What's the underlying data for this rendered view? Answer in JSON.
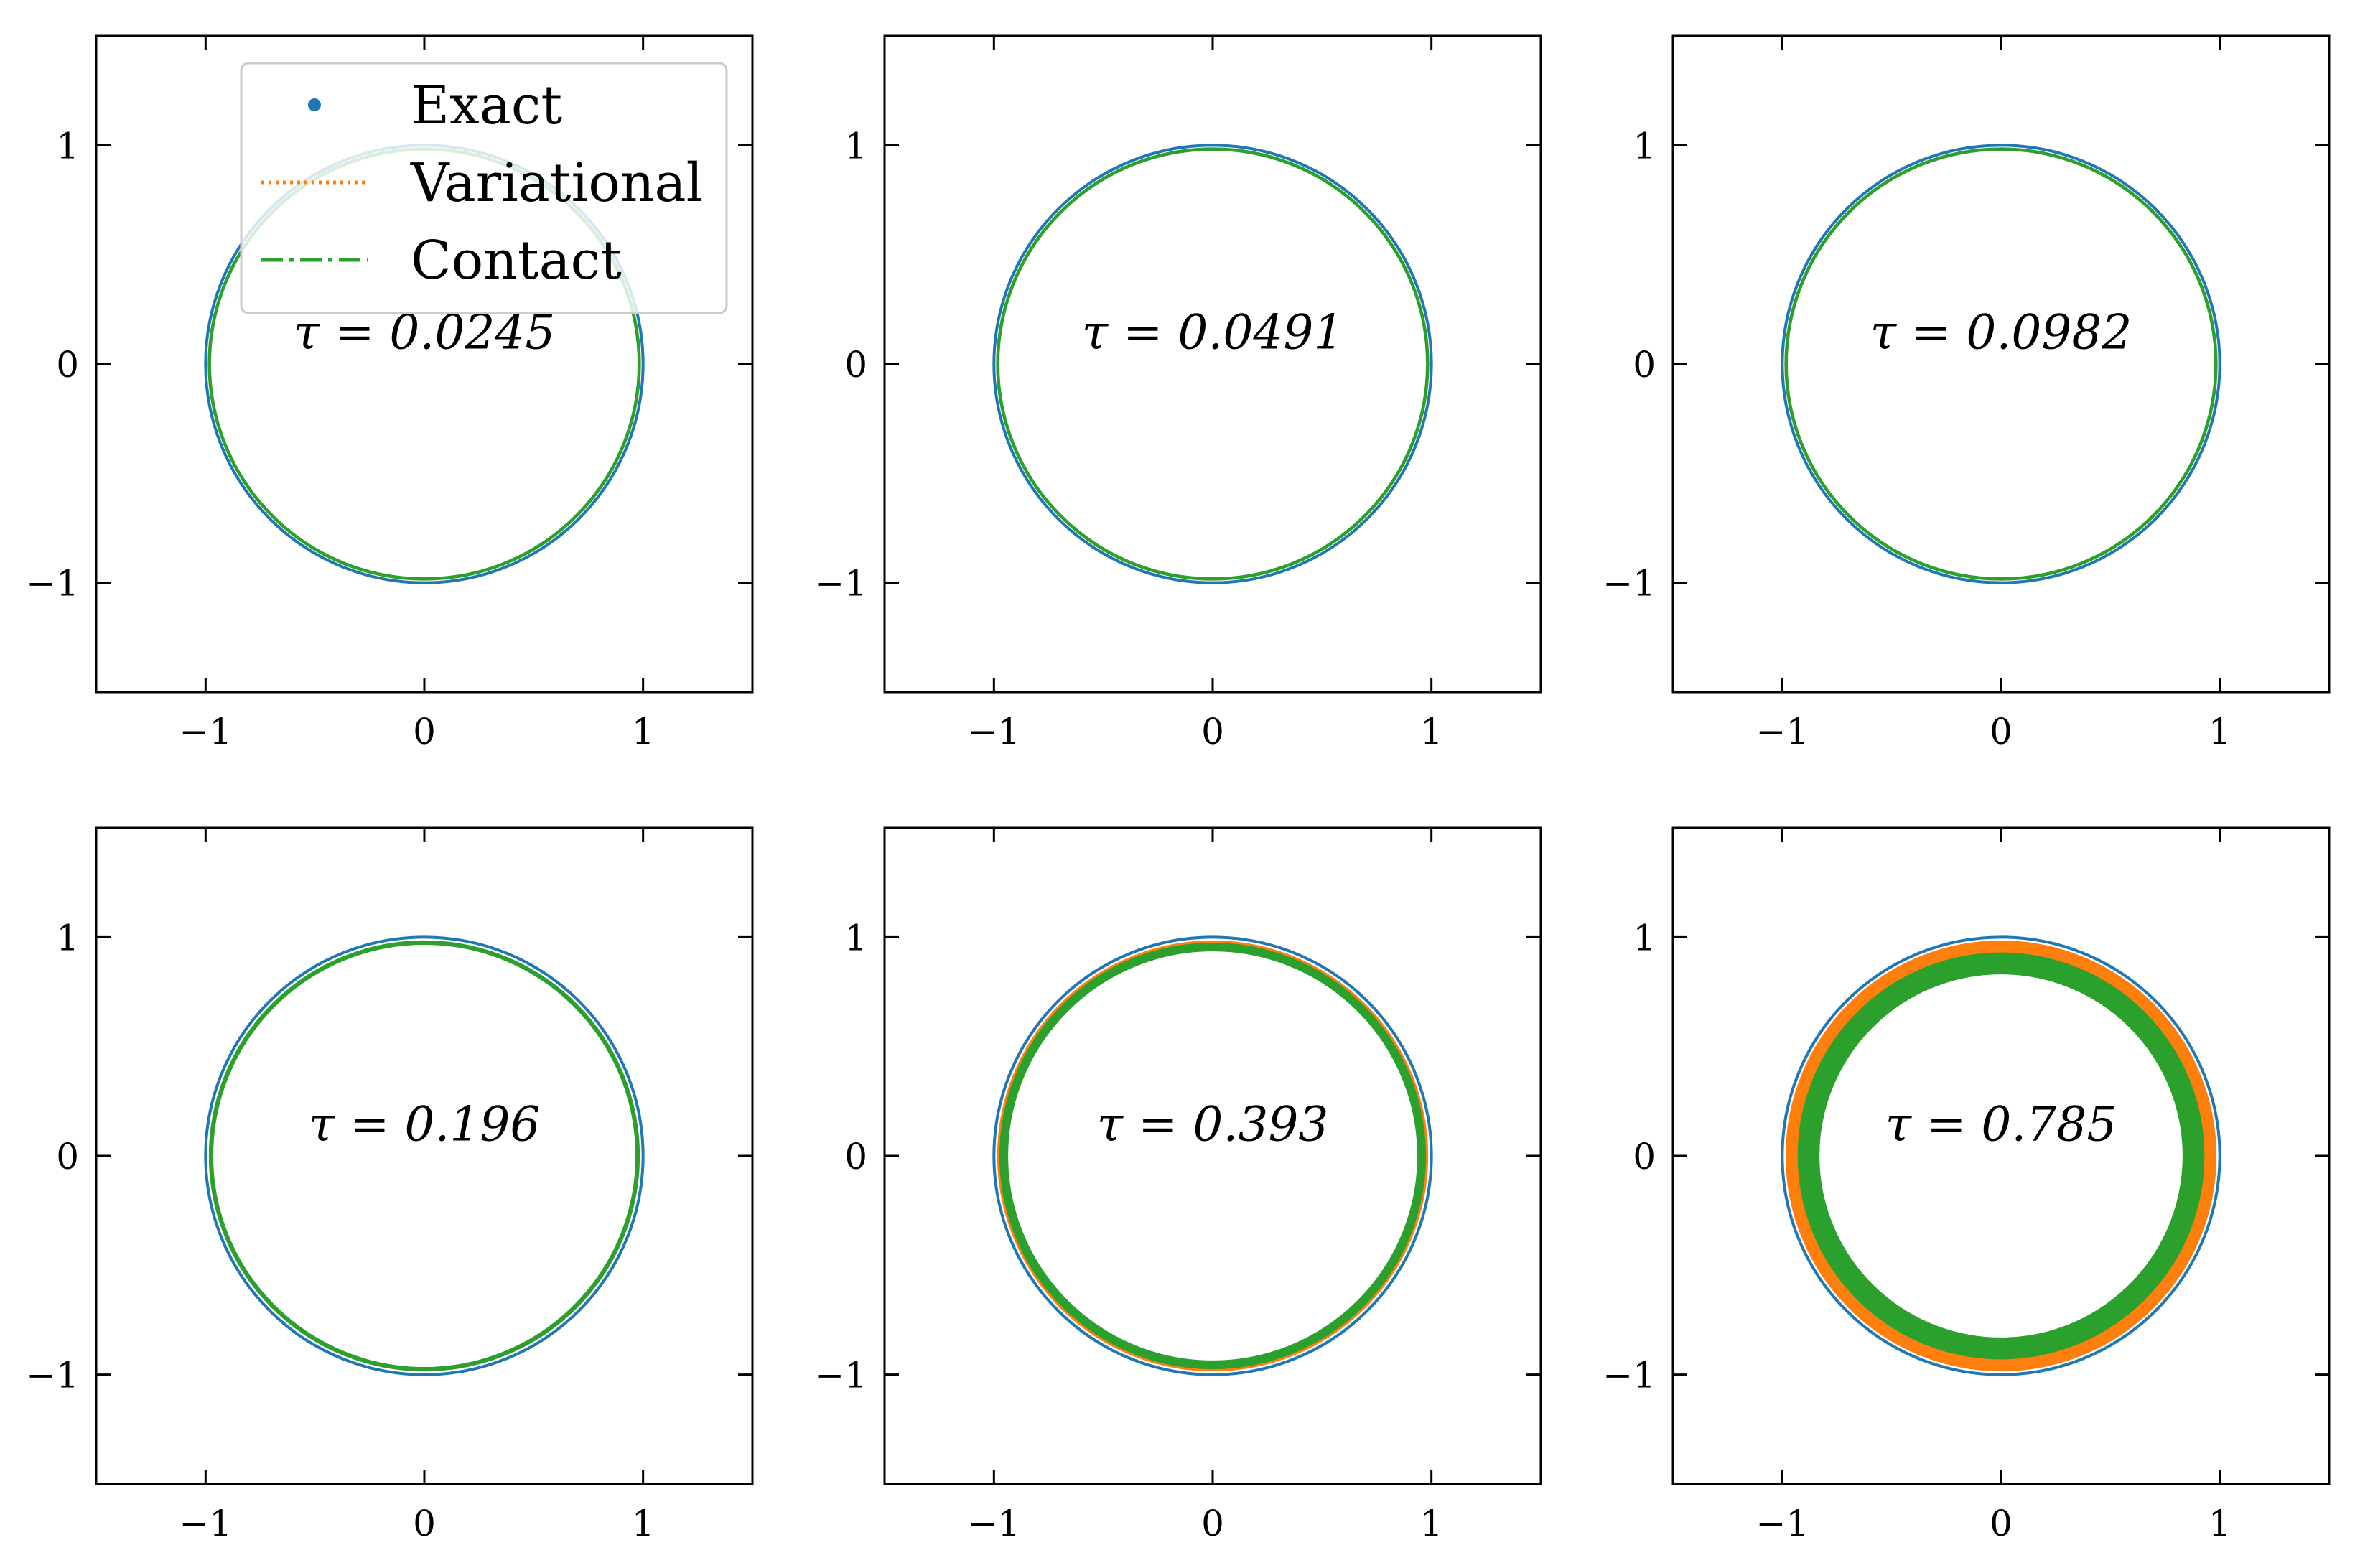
{
  "legend": {
    "entries": [
      {
        "label": "Exact",
        "style": "dot",
        "color": "#1f77b4"
      },
      {
        "label": "Variational",
        "style": "dotted",
        "color": "#ff7f0e"
      },
      {
        "label": "Contact",
        "style": "dashdot",
        "color": "#2ca02c"
      }
    ],
    "placement": "top-right of first subplot"
  },
  "colors": {
    "exact": "#1f77b4",
    "variational": "#ff7f0e",
    "contact": "#2ca02c",
    "frame": "#000000"
  },
  "chart_data": [
    {
      "type": "scatter",
      "annotation": "τ = 0.0245",
      "xlim": [
        -1.5,
        1.5
      ],
      "ylim": [
        -1.5,
        1.5
      ],
      "xticks": [
        -1,
        0,
        1
      ],
      "yticks": [
        -1,
        0,
        1
      ],
      "xtick_labels": [
        "−1",
        "0",
        "1"
      ],
      "ytick_labels": [
        "−1",
        "0",
        "1"
      ],
      "grid": false,
      "series": [
        {
          "name": "Exact",
          "shape": "circle",
          "center": [
            0,
            0
          ],
          "radius": 1.0
        },
        {
          "name": "Variational",
          "shape": "annulus",
          "center": [
            0,
            0
          ],
          "r_outer": 0.985,
          "r_inner": 0.985
        },
        {
          "name": "Contact",
          "shape": "annulus",
          "center": [
            0,
            0
          ],
          "r_outer": 0.99,
          "r_inner": 0.975
        }
      ]
    },
    {
      "type": "scatter",
      "annotation": "τ = 0.0491",
      "xlim": [
        -1.5,
        1.5
      ],
      "ylim": [
        -1.5,
        1.5
      ],
      "xticks": [
        -1,
        0,
        1
      ],
      "yticks": [
        -1,
        0,
        1
      ],
      "xtick_labels": [
        "−1",
        "0",
        "1"
      ],
      "ytick_labels": [
        "−1",
        "0",
        "1"
      ],
      "grid": false,
      "series": [
        {
          "name": "Exact",
          "shape": "circle",
          "center": [
            0,
            0
          ],
          "radius": 1.0
        },
        {
          "name": "Variational",
          "shape": "annulus",
          "center": [
            0,
            0
          ],
          "r_outer": 0.985,
          "r_inner": 0.985
        },
        {
          "name": "Contact",
          "shape": "annulus",
          "center": [
            0,
            0
          ],
          "r_outer": 0.99,
          "r_inner": 0.975
        }
      ]
    },
    {
      "type": "scatter",
      "annotation": "τ = 0.0982",
      "xlim": [
        -1.5,
        1.5
      ],
      "ylim": [
        -1.5,
        1.5
      ],
      "xticks": [
        -1,
        0,
        1
      ],
      "yticks": [
        -1,
        0,
        1
      ],
      "xtick_labels": [
        "−1",
        "0",
        "1"
      ],
      "ytick_labels": [
        "−1",
        "0",
        "1"
      ],
      "grid": false,
      "series": [
        {
          "name": "Exact",
          "shape": "circle",
          "center": [
            0,
            0
          ],
          "radius": 1.0
        },
        {
          "name": "Variational",
          "shape": "annulus",
          "center": [
            0,
            0
          ],
          "r_outer": 0.985,
          "r_inner": 0.985
        },
        {
          "name": "Contact",
          "shape": "annulus",
          "center": [
            0,
            0
          ],
          "r_outer": 0.99,
          "r_inner": 0.975
        }
      ]
    },
    {
      "type": "scatter",
      "annotation": "τ = 0.196",
      "xlim": [
        -1.5,
        1.5
      ],
      "ylim": [
        -1.5,
        1.5
      ],
      "xticks": [
        -1,
        0,
        1
      ],
      "yticks": [
        -1,
        0,
        1
      ],
      "xtick_labels": [
        "−1",
        "0",
        "1"
      ],
      "ytick_labels": [
        "−1",
        "0",
        "1"
      ],
      "grid": false,
      "series": [
        {
          "name": "Exact",
          "shape": "circle",
          "center": [
            0,
            0
          ],
          "radius": 1.0
        },
        {
          "name": "Variational",
          "shape": "annulus",
          "center": [
            0,
            0
          ],
          "r_outer": 0.985,
          "r_inner": 0.975
        },
        {
          "name": "Contact",
          "shape": "annulus",
          "center": [
            0,
            0
          ],
          "r_outer": 0.985,
          "r_inner": 0.965
        }
      ]
    },
    {
      "type": "scatter",
      "annotation": "τ = 0.393",
      "xlim": [
        -1.5,
        1.5
      ],
      "ylim": [
        -1.5,
        1.5
      ],
      "xticks": [
        -1,
        0,
        1
      ],
      "yticks": [
        -1,
        0,
        1
      ],
      "xtick_labels": [
        "−1",
        "0",
        "1"
      ],
      "ytick_labels": [
        "−1",
        "0",
        "1"
      ],
      "grid": false,
      "series": [
        {
          "name": "Exact",
          "shape": "circle",
          "center": [
            0,
            0
          ],
          "radius": 1.0
        },
        {
          "name": "Variational",
          "shape": "annulus",
          "center": [
            0,
            0
          ],
          "r_outer": 0.985,
          "r_inner": 0.94
        },
        {
          "name": "Contact",
          "shape": "annulus",
          "center": [
            0,
            0
          ],
          "r_outer": 0.975,
          "r_inner": 0.935
        }
      ]
    },
    {
      "type": "scatter",
      "annotation": "τ = 0.785",
      "xlim": [
        -1.5,
        1.5
      ],
      "ylim": [
        -1.5,
        1.5
      ],
      "xticks": [
        -1,
        0,
        1
      ],
      "yticks": [
        -1,
        0,
        1
      ],
      "xtick_labels": [
        "−1",
        "0",
        "1"
      ],
      "ytick_labels": [
        "−1",
        "0",
        "1"
      ],
      "grid": false,
      "series": [
        {
          "name": "Exact",
          "shape": "circle",
          "center": [
            0,
            0
          ],
          "radius": 1.0
        },
        {
          "name": "Variational",
          "shape": "annulus",
          "center": [
            0,
            0
          ],
          "r_outer": 0.985,
          "r_inner": 0.84
        },
        {
          "name": "Contact",
          "shape": "annulus",
          "center": [
            0,
            0
          ],
          "r_outer": 0.93,
          "r_inner": 0.83
        }
      ]
    }
  ]
}
